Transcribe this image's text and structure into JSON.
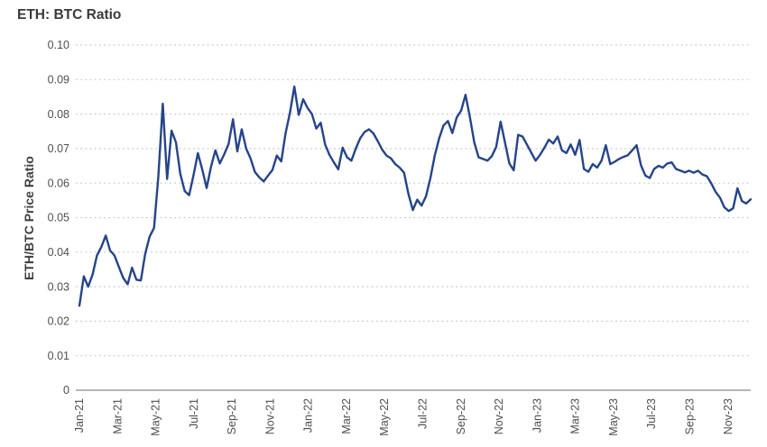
{
  "title": "ETH: BTC Ratio",
  "colors": {
    "line": "#25448A",
    "grid": "#c9c9c9",
    "axis": "#8a8a8a",
    "tick_text": "#4f4f4f",
    "title_text": "#3a3a3a"
  },
  "chart_data": {
    "type": "line",
    "title": "ETH: BTC Ratio",
    "xlabel": "",
    "ylabel": "ETH/BTC Price Ratio",
    "ylim": [
      0,
      0.1
    ],
    "grid": "dotted horizontal gridlines, solid baseline at 0",
    "legend": "none",
    "y_tick_labels": [
      "0.10",
      "0.09",
      "0.08",
      "0.07",
      "0.06",
      "0.05",
      "0.04",
      "0.03",
      "0.02",
      "0.01",
      "0"
    ],
    "x_tick_labels": [
      "Jan-21",
      "Mar-21",
      "May-21",
      "Jul-21",
      "Sep-21",
      "Nov-21",
      "Jan-22",
      "Mar-22",
      "May-22",
      "Jul-22",
      "Sep-22",
      "Nov-22",
      "Jan-23",
      "Mar-23",
      "May-23",
      "Jul-23",
      "Sep-23",
      "Nov-23"
    ],
    "series": [
      {
        "name": "ETH/BTC price ratio",
        "x_start": "2021-01-01",
        "x_interval_days": 7,
        "x_end": "2023-12-08",
        "values": [
          0.0245,
          0.033,
          0.03,
          0.0335,
          0.039,
          0.0415,
          0.0448,
          0.0405,
          0.039,
          0.0357,
          0.0325,
          0.0307,
          0.0355,
          0.032,
          0.0318,
          0.0395,
          0.0445,
          0.047,
          0.062,
          0.083,
          0.0612,
          0.0752,
          0.0718,
          0.0627,
          0.0577,
          0.0565,
          0.0622,
          0.0687,
          0.064,
          0.0586,
          0.0648,
          0.0695,
          0.0657,
          0.0683,
          0.0713,
          0.0785,
          0.0692,
          0.0756,
          0.07,
          0.0672,
          0.0632,
          0.0617,
          0.0605,
          0.0622,
          0.0638,
          0.068,
          0.0663,
          0.0745,
          0.0805,
          0.088,
          0.0798,
          0.0843,
          0.0818,
          0.08,
          0.0758,
          0.0775,
          0.0712,
          0.0682,
          0.066,
          0.064,
          0.0703,
          0.0675,
          0.0665,
          0.07,
          0.073,
          0.0748,
          0.0756,
          0.0744,
          0.0722,
          0.0697,
          0.068,
          0.0672,
          0.0655,
          0.0645,
          0.063,
          0.0568,
          0.0522,
          0.0552,
          0.0535,
          0.0562,
          0.0615,
          0.068,
          0.073,
          0.0767,
          0.078,
          0.0745,
          0.079,
          0.081,
          0.0856,
          0.0792,
          0.0718,
          0.0675,
          0.067,
          0.0665,
          0.0678,
          0.0705,
          0.0778,
          0.0718,
          0.0657,
          0.0637,
          0.074,
          0.0735,
          0.0712,
          0.0688,
          0.0665,
          0.0682,
          0.0703,
          0.0726,
          0.0715,
          0.0735,
          0.0695,
          0.0687,
          0.0712,
          0.0682,
          0.0725,
          0.0641,
          0.0633,
          0.0655,
          0.0645,
          0.0665,
          0.071,
          0.0655,
          0.0662,
          0.067,
          0.0676,
          0.0681,
          0.0695,
          0.071,
          0.0652,
          0.0622,
          0.0615,
          0.0641,
          0.065,
          0.0645,
          0.0657,
          0.066,
          0.0641,
          0.0636,
          0.0631,
          0.0636,
          0.063,
          0.0636,
          0.0625,
          0.062,
          0.06,
          0.0575,
          0.0558,
          0.053,
          0.0519,
          0.0527,
          0.0585,
          0.0548,
          0.0541,
          0.0553
        ]
      }
    ]
  }
}
